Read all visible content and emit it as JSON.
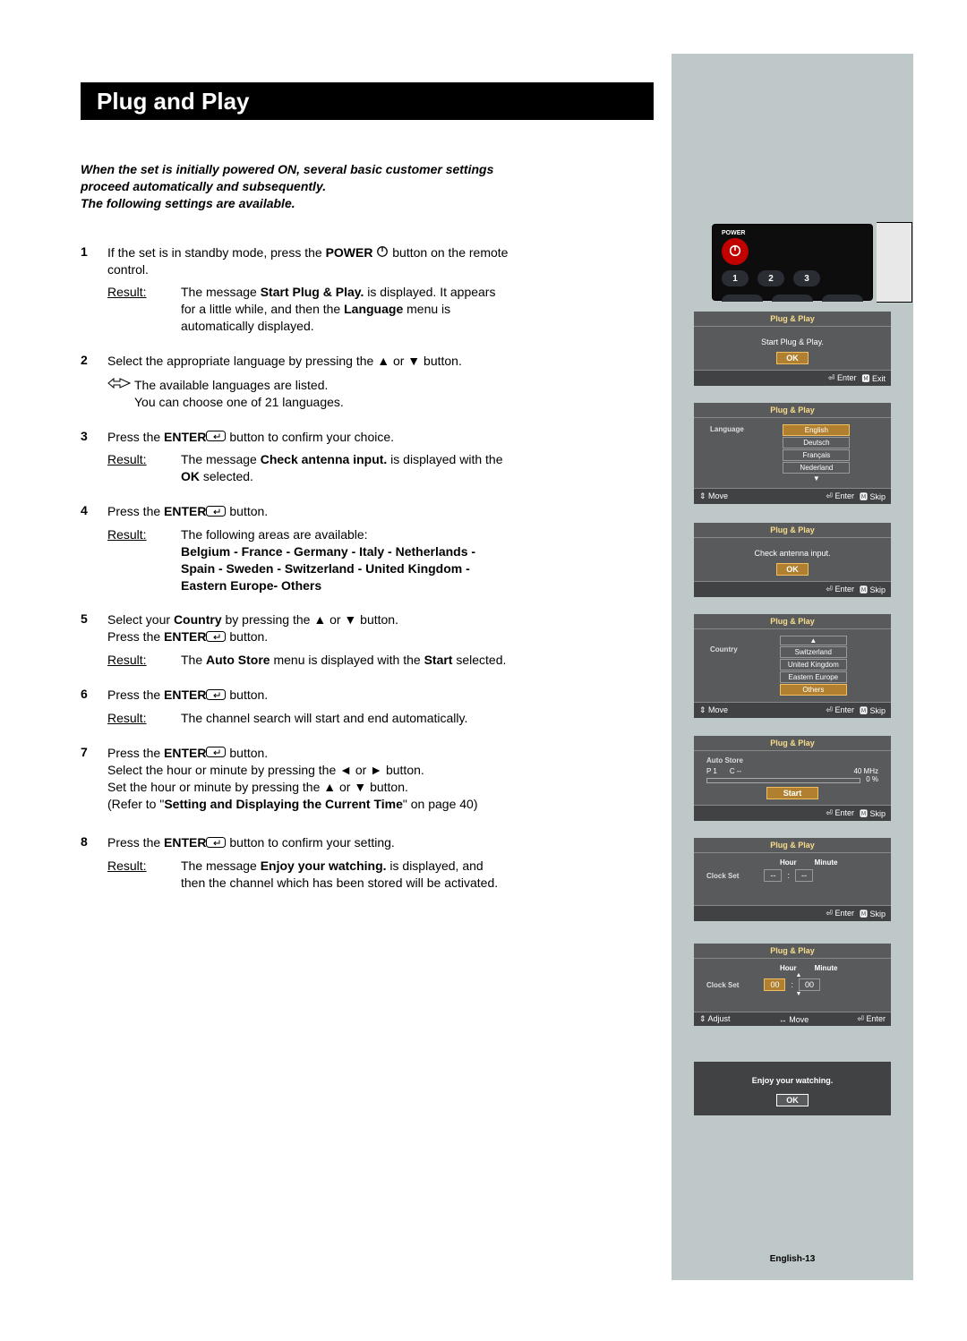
{
  "title": "Plug and Play",
  "intro": "When the set is initially powered ON, several basic customer settings proceed automatically and subsequently.\nThe following settings are available.",
  "result_label": "Result:",
  "steps": [
    {
      "n": "1",
      "body_html": "If the set is in standby mode, press the <b>POWER</b> %POWER% button on the remote control.",
      "result_html": "The message <b>Start Plug & Play.</b> is displayed. It appears for a little while, and then the <b>Language</b> menu is automatically displayed."
    },
    {
      "n": "2",
      "body_html": "Select the appropriate language by pressing the ▲ or ▼ button.",
      "note": "The available languages are listed.\nYou can choose one of 21 languages."
    },
    {
      "n": "3",
      "body_html": "Press the <b>ENTER</b>%ENTER% button to confirm your choice.",
      "result_html": "The message <b>Check antenna input.</b> is displayed with the <b>OK</b> selected."
    },
    {
      "n": "4",
      "body_html": "Press the <b>ENTER</b>%ENTER% button.",
      "result_html": "The following areas are available:<br><b>Belgium - France - Germany -  Italy - Netherlands - Spain - Sweden - Switzerland - United Kingdom - Eastern Europe- Others</b>"
    },
    {
      "n": "5",
      "body_html": "Select your <b>Country</b> by pressing the ▲ or ▼ button.<br>Press the <b>ENTER</b>%ENTER% button.",
      "result_html": "The <b>Auto Store</b> menu is displayed with the <b>Start</b> selected."
    },
    {
      "n": "6",
      "body_html": "Press the <b>ENTER</b>%ENTER% button.",
      "result_html": "The channel search will start and end automatically."
    },
    {
      "n": "7",
      "body_html": "Press the <b>ENTER</b>%ENTER% button.<br>Select the hour or minute by pressing the ◄ or ► button.<br>Set the hour or minute by pressing the ▲ or ▼ button.<br>(Refer to \"<b>Setting and Displaying the Current Time</b>\" on page 40)"
    },
    {
      "n": "8",
      "body_html": "Press the <b>ENTER</b>%ENTER% button to confirm your setting.",
      "result_html": "The message <b>Enjoy your watching.</b> is displayed, and then the channel which has been stored will be activated."
    }
  ],
  "page_label": "English-13",
  "remote": {
    "power_label": "POWER",
    "nums": [
      "1",
      "2",
      "3"
    ]
  },
  "tv_title": "Plug & Play",
  "screens": {
    "start": {
      "msg": "Start Plug & Play.",
      "ok": "OK",
      "footer": [
        "⏎ Enter",
        "🅼 Exit"
      ]
    },
    "lang": {
      "label": "Language",
      "opts": [
        "English",
        "Deutsch",
        "Français",
        "Nederland"
      ],
      "sel": 0,
      "arrow": "▼",
      "footer": [
        "⇕ Move",
        "⏎ Enter",
        "🅼 Skip"
      ]
    },
    "antenna": {
      "msg": "Check antenna input.",
      "ok": "OK",
      "footer": [
        "⏎ Enter",
        "🅼 Skip"
      ]
    },
    "country": {
      "label": "Country",
      "opts": [
        "▲",
        "Switzerland",
        "United Kingdom",
        "Eastern Europe",
        "Others"
      ],
      "sel": 4,
      "footer": [
        "⇕ Move",
        "⏎ Enter",
        "🅼 Skip"
      ]
    },
    "auto": {
      "label": "Auto Store",
      "p": "P   1",
      "c": "C   --",
      "mhz": "40 MHz",
      "pct": "0  %",
      "start": "Start",
      "footer": [
        "⏎ Enter",
        "🅼 Skip"
      ]
    },
    "clock1": {
      "label": "Clock Set",
      "hour": "Hour",
      "minute": "Minute",
      "hv": "--",
      "colon": ":",
      "mv": "--",
      "footer": [
        "⏎ Enter",
        "🅼 Skip"
      ]
    },
    "clock2": {
      "label": "Clock Set",
      "hour": "Hour",
      "minute": "Minute",
      "hv": "00",
      "colon": ":",
      "mv": "00",
      "up": "▲",
      "dn": "▼",
      "footer": [
        "⇕ Adjust",
        "↔ Move",
        "⏎ Enter"
      ]
    },
    "enjoy": {
      "msg": "Enjoy your watching.",
      "ok": "OK"
    }
  },
  "icons": {
    "power_svg": "<svg width='14' height='14' viewBox='0 0 24 24'><circle cx='12' cy='12' r='9' fill='none' stroke='#000' stroke-width='2.2'/><line x1='12' y1='3' x2='12' y2='12' stroke='#000' stroke-width='2.2'/></svg>",
    "power_svg_white": "<svg width='16' height='16' viewBox='0 0 24 24'><circle cx='12' cy='12' r='8' fill='none' stroke='#fff' stroke-width='2.4'/><line x1='12' y1='3' x2='12' y2='12' stroke='#fff' stroke-width='2.4'/></svg>",
    "enter_svg": "<svg width='22' height='12' viewBox='0 0 44 24'><rect x='1' y='1' width='42' height='22' rx='6' fill='none' stroke='#000' stroke-width='2'/><path d='M30 7 L30 14 L18 14 M22 10 L18 14 L22 18' fill='none' stroke='#000' stroke-width='2'/></svg>",
    "note_svg": "<svg width='26' height='14' viewBox='0 0 52 28'><path d='M2 14 L14 4 L14 10 L28 10 L28 4 L50 14 L28 24 L28 18 L14 18 L14 24 Z' fill='none' stroke='#000' stroke-width='2'/></svg>"
  }
}
